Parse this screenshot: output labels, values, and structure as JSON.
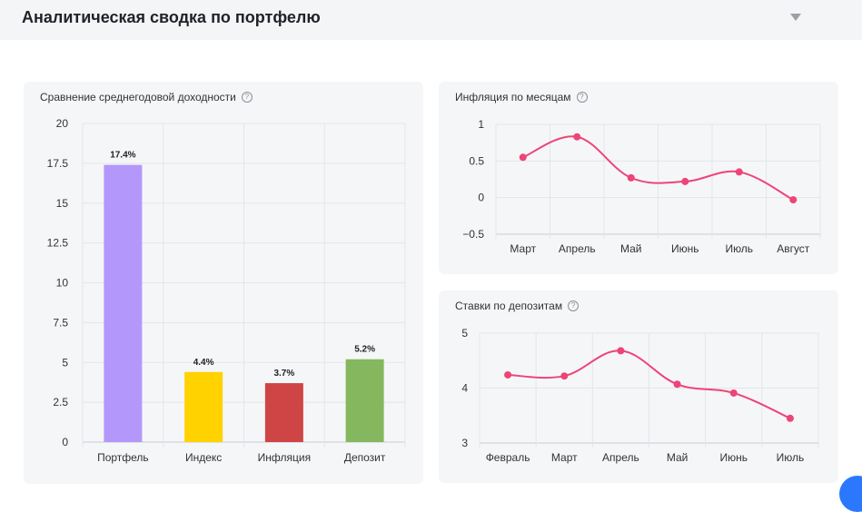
{
  "header": {
    "title": "Аналитическая сводка по портфелю"
  },
  "colors": {
    "line": "#ee4477",
    "grid": "#e3e5ea",
    "axis": "#c9ccd3"
  },
  "chart_data": [
    {
      "id": "bar",
      "type": "bar",
      "title": "Сравнение среднегодовой доходности",
      "categories": [
        "Портфель",
        "Индекс",
        "Инфляция",
        "Депозит"
      ],
      "values": [
        17.4,
        4.4,
        3.7,
        5.2
      ],
      "data_labels": [
        "17.4%",
        "4.4%",
        "3.7%",
        "5.2%"
      ],
      "colors": [
        "#b497fb",
        "#ffd200",
        "#cf4444",
        "#85b85e"
      ],
      "ylim": [
        0,
        20
      ],
      "yticks": [
        "0",
        "2.5",
        "5",
        "7.5",
        "10",
        "12.5",
        "15",
        "17.5",
        "20"
      ],
      "grid": true
    },
    {
      "id": "infl",
      "type": "line",
      "title": "Инфляция по месяцам",
      "categories": [
        "Март",
        "Апрель",
        "Май",
        "Июнь",
        "Июль",
        "Август"
      ],
      "values": [
        0.55,
        0.83,
        0.27,
        0.22,
        0.35,
        -0.03
      ],
      "ylim": [
        -0.5,
        1
      ],
      "yticks": [
        "−0.5",
        "0",
        "0.5",
        "1"
      ],
      "grid": true
    },
    {
      "id": "dep",
      "type": "line",
      "title": "Ставки по депозитам",
      "categories": [
        "Февраль",
        "Март",
        "Апрель",
        "Май",
        "Июнь",
        "Июль"
      ],
      "values": [
        4.24,
        4.22,
        4.68,
        4.07,
        3.91,
        3.45
      ],
      "ylim": [
        3,
        5
      ],
      "yticks": [
        "3",
        "4",
        "5"
      ],
      "grid": true
    }
  ]
}
